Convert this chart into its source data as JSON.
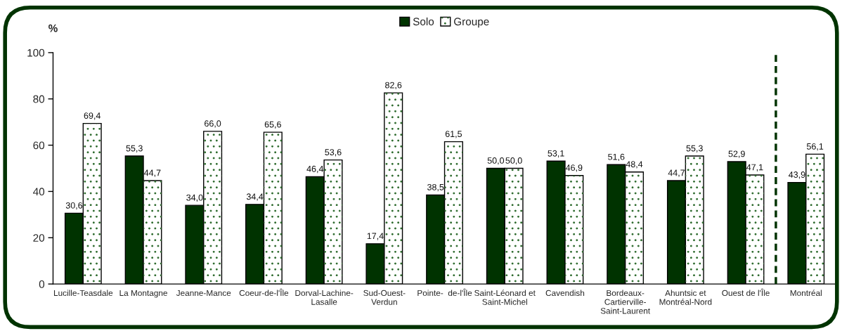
{
  "chart_data": {
    "type": "bar",
    "ylabel": "%",
    "categories": [
      "Lucille-Teasdale",
      "La Montagne",
      "Jeanne-Mance",
      "Coeur-de-l'Île",
      "Dorval-Lachine-\nLasalle",
      "Sud-Ouest-\nVerdun",
      "Pointe-  de-l'Île",
      "Saint-Léonard et\nSaint-Michel",
      "Cavendish",
      "Bordeaux-\nCartierville-\nSaint-Laurent",
      "Ahuntsic et\nMontréal-Nord",
      "Ouest de l'Île",
      "Montréal"
    ],
    "series": [
      {
        "name": "Solo",
        "color": "#003300",
        "values": [
          30.6,
          55.3,
          34.0,
          34.4,
          46.4,
          17.4,
          38.5,
          50.0,
          53.1,
          51.6,
          44.7,
          52.9,
          43.9
        ],
        "value_labels": [
          "30,6",
          "55,3",
          "34,0",
          "34,4",
          "46,4",
          "17,4",
          "38,5",
          "50,0",
          "53,1",
          "51,6",
          "44,7",
          "52,9",
          "43,9"
        ]
      },
      {
        "name": "Groupe",
        "color": "#ffffff",
        "values": [
          69.4,
          44.7,
          66.0,
          65.6,
          53.6,
          82.6,
          61.5,
          50.0,
          46.9,
          48.4,
          55.3,
          47.1,
          56.1
        ],
        "value_labels": [
          "69,4",
          "44,7",
          "66,0",
          "65,6",
          "53,6",
          "82,6",
          "61,5",
          "50,0",
          "46,9",
          "48,4",
          "55,3",
          "47,1",
          "56,1"
        ]
      }
    ],
    "ylim": [
      0,
      100
    ],
    "yticks": [
      0,
      20,
      40,
      60,
      80,
      100
    ],
    "legend": "top",
    "grid": false
  }
}
